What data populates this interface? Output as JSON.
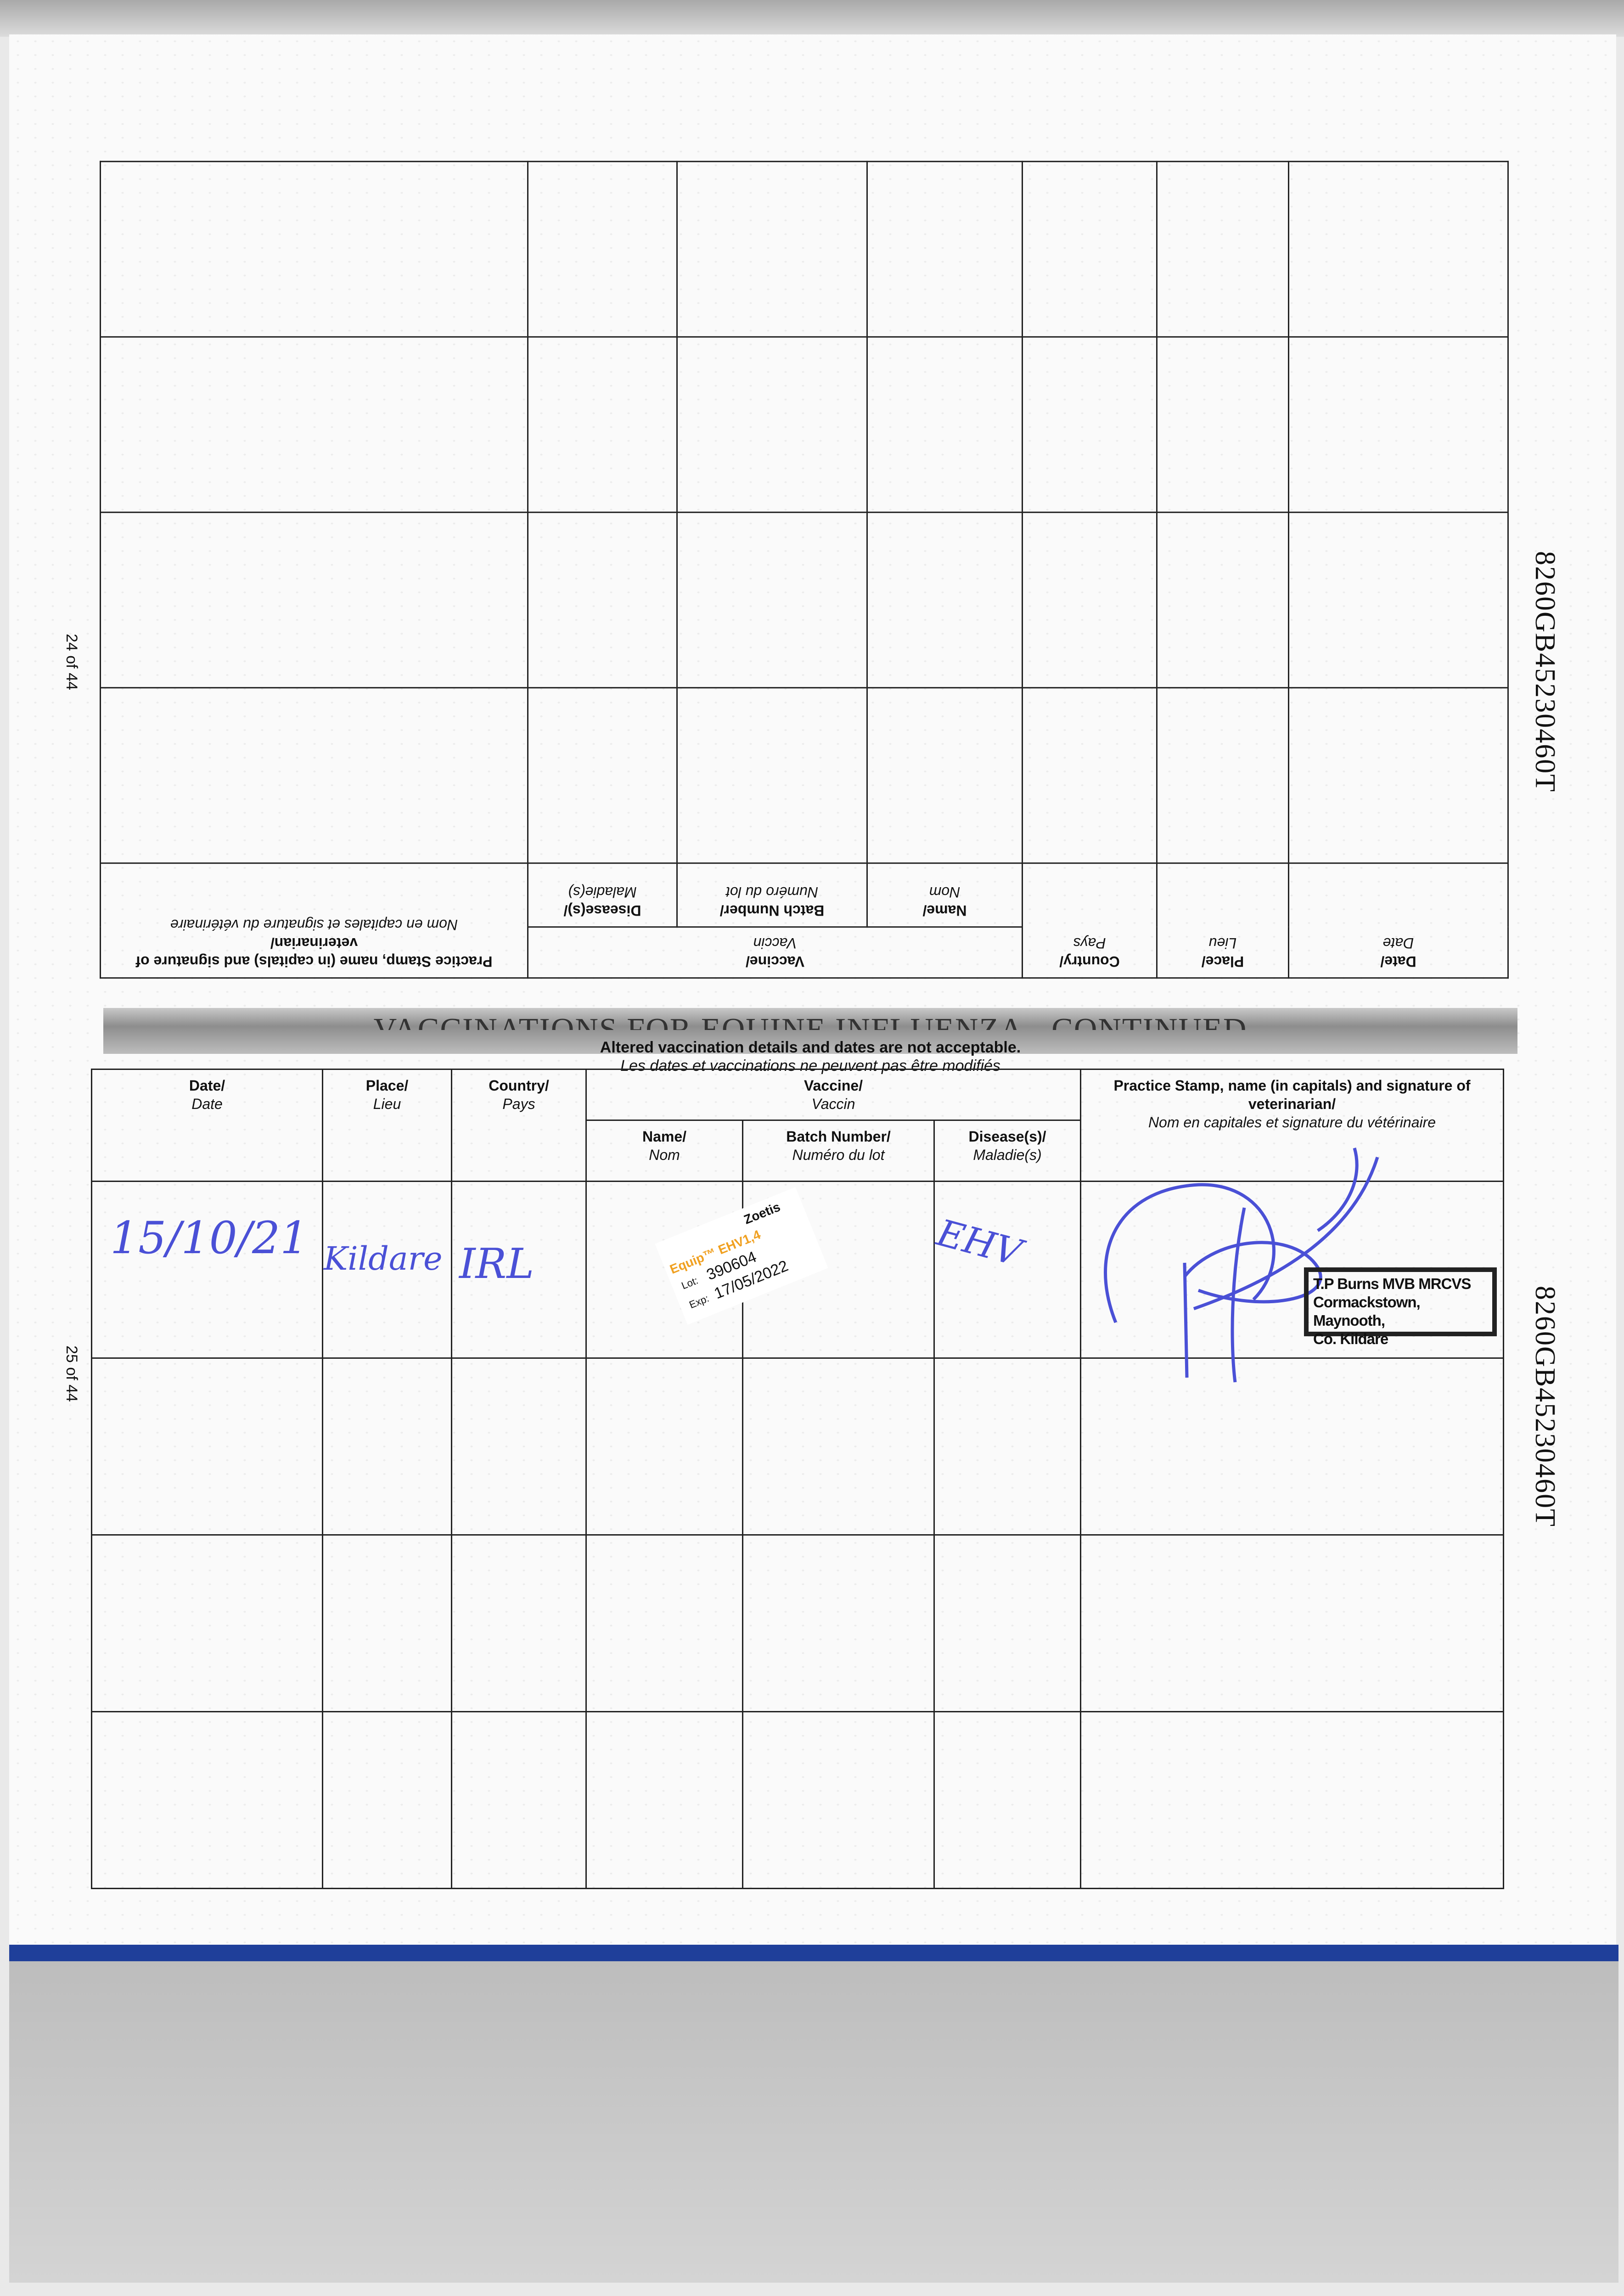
{
  "document": {
    "section_title": "VACCINATIONS FOR EQUINE INFLUENZA - CONTINUED",
    "notice_en": "Altered vaccination details and dates are not acceptable.",
    "notice_fr": "Les dates et vaccinations ne peuvent pas être modifiés",
    "passport_number": "8260GB45230460T",
    "page_top": "24 of 44",
    "page_bottom": "25 of 44"
  },
  "table_headers": {
    "date": {
      "en": "Date/",
      "fr": "Date"
    },
    "place": {
      "en": "Place/",
      "fr": "Lieu"
    },
    "country": {
      "en": "Country/",
      "fr": "Pays"
    },
    "vaccine": {
      "en": "Vaccine/",
      "fr": "Vaccin"
    },
    "name": {
      "en": "Name/",
      "fr": "Nom"
    },
    "batch": {
      "en": "Batch Number/",
      "fr": "Numéro du lot"
    },
    "disease": {
      "en": "Disease(s)/",
      "fr": "Maladie(s)"
    },
    "practice": {
      "en": "Practice Stamp, name (in capitals) and signature of veterinarian/",
      "fr": "Nom en capitales et signature du vétérinaire"
    }
  },
  "entries": [
    {
      "date": "15/10/21",
      "place": "Kildare",
      "country": "IRL",
      "disease": "EHV",
      "sticker": {
        "product": "Equip™ EHV1,4",
        "maker": "Zoetis",
        "lot_label": "Lot:",
        "lot": "390604",
        "exp_label": "Exp:",
        "exp": "17/05/2022"
      },
      "stamp": [
        "T.P Burns MVB MRCVS",
        "Cormackstown, Maynooth,",
        "Co. Kildare"
      ]
    }
  ],
  "colors": {
    "ink": "#4a50d6",
    "binding": "#1f3f9a",
    "sticker_orange": "#f0a020"
  }
}
